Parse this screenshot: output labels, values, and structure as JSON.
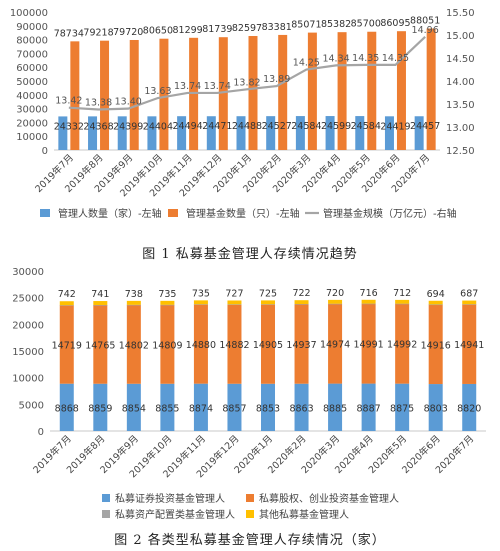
{
  "figures": [
    {
      "caption": "图 1  私募基金管理人存续情况趋势"
    },
    {
      "caption": "图 2  各类型私募基金管理人存续情况（家）"
    }
  ],
  "chart_data": [
    {
      "type": "bar",
      "categories": [
        "2019年7月",
        "2019年8月",
        "2019年9月",
        "2019年10月",
        "2019年11月",
        "2019年12月",
        "2020年1月",
        "2020年2月",
        "2020年3月",
        "2020年4月",
        "2020年5月",
        "2020年6月",
        "2020年7月"
      ],
      "series": [
        {
          "name": "管理人数量（家）-左轴",
          "type": "bar",
          "axis": "left",
          "color": "#5b9bd5",
          "values": [
            24332,
            24368,
            24399,
            24404,
            24494,
            24471,
            24488,
            24527,
            24584,
            24599,
            24584,
            24419,
            24457
          ]
        },
        {
          "name": "管理基金数量（只）-左轴",
          "type": "bar",
          "axis": "left",
          "color": "#ed7d31",
          "values": [
            78734,
            79218,
            79720,
            80650,
            81299,
            81739,
            82597,
            83381,
            85071,
            85382,
            85700,
            86095,
            88051
          ]
        },
        {
          "name": "管理基金规模（万亿元）-右轴",
          "type": "line",
          "axis": "right",
          "color": "#a5a5a5",
          "values": [
            13.42,
            13.38,
            13.4,
            13.63,
            13.74,
            13.74,
            13.82,
            13.89,
            14.25,
            14.34,
            14.35,
            14.35,
            14.96
          ]
        }
      ],
      "y_left": {
        "min": 0,
        "max": 100000,
        "step": 10000
      },
      "y_right": {
        "min": 12.5,
        "max": 15.5,
        "step": 0.5
      },
      "grid": false,
      "legend_position": "bottom"
    },
    {
      "type": "bar",
      "stacked": true,
      "categories": [
        "2019年7月",
        "2019年8月",
        "2019年9月",
        "2019年10月",
        "2019年11月",
        "2019年12月",
        "2020年1月",
        "2020年2月",
        "2020年3月",
        "2020年4月",
        "2020年5月",
        "2020年6月",
        "2020年7月"
      ],
      "series": [
        {
          "name": "私募证券投资基金管理人",
          "color": "#5b9bd5",
          "values": [
            8868,
            8859,
            8854,
            8855,
            8874,
            8857,
            8853,
            8863,
            8885,
            8887,
            8875,
            8803,
            8820
          ]
        },
        {
          "name": "私募股权、创业投资基金管理人",
          "color": "#ed7d31",
          "values": [
            14719,
            14765,
            14802,
            14809,
            14880,
            14882,
            14905,
            14937,
            14974,
            14991,
            14992,
            14916,
            14941
          ]
        },
        {
          "name": "私募资产配置类基金管理人",
          "color": "#a5a5a5",
          "values": [
            3,
            3,
            5,
            5,
            5,
            5,
            5,
            5,
            5,
            5,
            5,
            6,
            9
          ]
        },
        {
          "name": "其他私募基金管理人",
          "color": "#ffc000",
          "values": [
            742,
            741,
            738,
            735,
            735,
            727,
            725,
            722,
            720,
            716,
            712,
            694,
            687
          ]
        }
      ],
      "label_series": [
        0,
        1,
        3
      ],
      "y": {
        "min": 0,
        "max": 30000,
        "step": 5000
      },
      "grid": false,
      "legend_position": "bottom"
    }
  ]
}
